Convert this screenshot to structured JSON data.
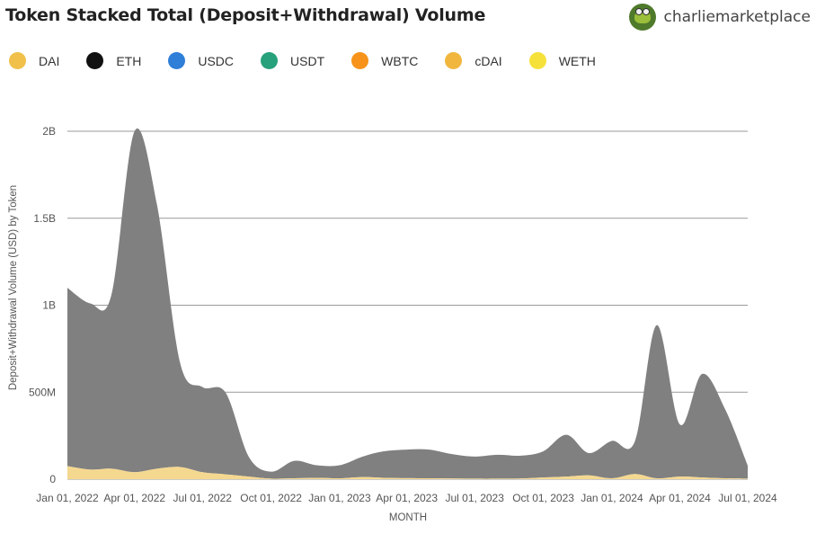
{
  "title": "Token Stacked Total (Deposit+Withdrawal) Volume",
  "account": {
    "name": "charliemarketplace",
    "avatar_icon": "frog-avatar-icon"
  },
  "legend": [
    {
      "label": "DAI",
      "color": "#f0c04a"
    },
    {
      "label": "ETH",
      "color": "#111111"
    },
    {
      "label": "USDC",
      "color": "#2f7ed8"
    },
    {
      "label": "USDT",
      "color": "#26a17b"
    },
    {
      "label": "WBTC",
      "color": "#f7931a"
    },
    {
      "label": "cDAI",
      "color": "#f0b63e"
    },
    {
      "label": "WETH",
      "color": "#f5e13a"
    }
  ],
  "chart_data": {
    "type": "area",
    "stacked": true,
    "xlabel": "MONTH",
    "ylabel": "Deposit+Withdrawal Volume (USD) by Token",
    "x": [
      "2022-01-01",
      "2022-02-01",
      "2022-03-01",
      "2022-04-01",
      "2022-05-01",
      "2022-06-01",
      "2022-07-01",
      "2022-08-01",
      "2022-09-01",
      "2022-10-01",
      "2022-11-01",
      "2022-12-01",
      "2023-01-01",
      "2023-02-01",
      "2023-03-01",
      "2023-04-01",
      "2023-05-01",
      "2023-06-01",
      "2023-07-01",
      "2023-08-01",
      "2023-09-01",
      "2023-10-01",
      "2023-11-01",
      "2023-12-01",
      "2024-01-01",
      "2024-02-01",
      "2024-03-01",
      "2024-04-01",
      "2024-05-01",
      "2024-06-01",
      "2024-07-01"
    ],
    "x_ticks": [
      "Jan 01, 2022",
      "Apr 01, 2022",
      "Jul 01, 2022",
      "Oct 01, 2022",
      "Jan 01, 2023",
      "Apr 01, 2023",
      "Jul 01, 2023",
      "Oct 01, 2023",
      "Jan 01, 2024",
      "Apr 01, 2024",
      "Jul 01, 2024"
    ],
    "y_ticks": [
      {
        "value": 0,
        "label": "0"
      },
      {
        "value": 500000000,
        "label": "500M"
      },
      {
        "value": 1000000000,
        "label": "1B"
      },
      {
        "value": 1500000000,
        "label": "1.5B"
      },
      {
        "value": 2000000000,
        "label": "2B"
      }
    ],
    "ylim": [
      0,
      2000000000
    ],
    "grid": true,
    "series": [
      {
        "name": "DAI",
        "color": "#f5d890",
        "values": [
          75000000,
          55000000,
          60000000,
          40000000,
          60000000,
          70000000,
          40000000,
          28000000,
          15000000,
          3000000,
          5000000,
          8000000,
          5000000,
          12000000,
          8000000,
          6000000,
          5000000,
          4000000,
          3000000,
          3000000,
          4000000,
          10000000,
          15000000,
          22000000,
          5000000,
          30000000,
          5000000,
          15000000,
          10000000,
          5000000,
          3000000
        ]
      },
      {
        "name": "ETH",
        "color": "#808080",
        "values": [
          1025000000,
          955000000,
          1000000000,
          1960000000,
          1520000000,
          600000000,
          490000000,
          470000000,
          115000000,
          40000000,
          100000000,
          72000000,
          75000000,
          118000000,
          152000000,
          164000000,
          165000000,
          140000000,
          127000000,
          137000000,
          131000000,
          150000000,
          240000000,
          128000000,
          215000000,
          190000000,
          880000000,
          300000000,
          595000000,
          395000000,
          75000000
        ]
      }
    ]
  }
}
